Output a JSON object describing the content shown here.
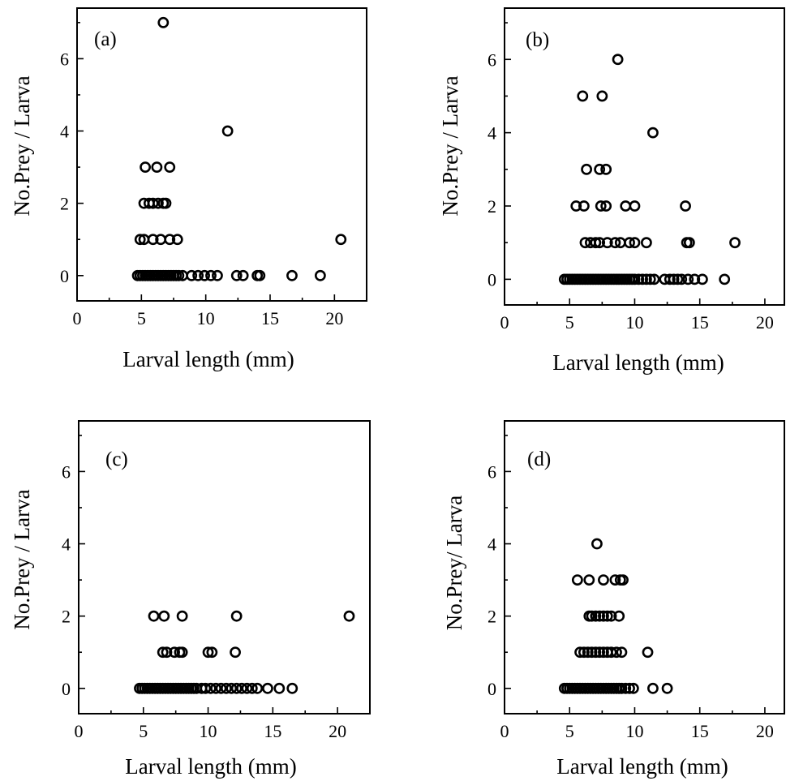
{
  "chart_data": [
    {
      "type": "scatter",
      "panel_label": "(a)",
      "xlabel": "Larval length (mm)",
      "ylabel": "No.Prey / Larva",
      "xlim": [
        0,
        22.5
      ],
      "ylim": [
        -0.7,
        7.4
      ],
      "xticks": [
        0,
        5,
        10,
        15,
        20
      ],
      "yticks": [
        0,
        2,
        4,
        6
      ],
      "x_minor": [
        2.5,
        7.5,
        12.5,
        17.5
      ],
      "y_minor": [
        1,
        3,
        5,
        7
      ],
      "points": [
        [
          6.7,
          7
        ],
        [
          11.7,
          4
        ],
        [
          5.3,
          3
        ],
        [
          6.2,
          3
        ],
        [
          7.2,
          3
        ],
        [
          5.2,
          2
        ],
        [
          5.6,
          2
        ],
        [
          5.9,
          2
        ],
        [
          6.3,
          2
        ],
        [
          6.7,
          2
        ],
        [
          6.9,
          2
        ],
        [
          4.9,
          1
        ],
        [
          5.2,
          1
        ],
        [
          5.9,
          1
        ],
        [
          6.5,
          1
        ],
        [
          7.2,
          1
        ],
        [
          7.8,
          1
        ],
        [
          20.5,
          1
        ],
        [
          4.7,
          0
        ],
        [
          4.9,
          0
        ],
        [
          5.1,
          0
        ],
        [
          5.3,
          0
        ],
        [
          5.5,
          0
        ],
        [
          5.7,
          0
        ],
        [
          5.9,
          0
        ],
        [
          6.1,
          0
        ],
        [
          6.3,
          0
        ],
        [
          6.5,
          0
        ],
        [
          6.7,
          0
        ],
        [
          6.9,
          0
        ],
        [
          7.1,
          0
        ],
        [
          7.3,
          0
        ],
        [
          7.5,
          0
        ],
        [
          7.7,
          0
        ],
        [
          7.9,
          0
        ],
        [
          8.2,
          0
        ],
        [
          8.9,
          0
        ],
        [
          9.4,
          0
        ],
        [
          9.9,
          0
        ],
        [
          10.4,
          0
        ],
        [
          10.9,
          0
        ],
        [
          12.4,
          0
        ],
        [
          12.9,
          0
        ],
        [
          14.0,
          0
        ],
        [
          14.2,
          0
        ],
        [
          16.7,
          0
        ],
        [
          18.9,
          0
        ]
      ]
    },
    {
      "type": "scatter",
      "panel_label": "(b)",
      "xlabel": "Larval length (mm)",
      "ylabel": "No.Prey / Larva",
      "xlim": [
        0,
        21.5
      ],
      "ylim": [
        -0.7,
        7.4
      ],
      "xticks": [
        0,
        5,
        10,
        15,
        20
      ],
      "yticks": [
        0,
        2,
        4,
        6
      ],
      "x_minor": [
        2.5,
        7.5,
        12.5,
        17.5
      ],
      "y_minor": [
        1,
        3,
        5,
        7
      ],
      "points": [
        [
          8.7,
          6
        ],
        [
          6.0,
          5
        ],
        [
          7.5,
          5
        ],
        [
          11.4,
          4
        ],
        [
          6.3,
          3
        ],
        [
          7.3,
          3
        ],
        [
          7.8,
          3
        ],
        [
          5.5,
          2
        ],
        [
          6.1,
          2
        ],
        [
          7.4,
          2
        ],
        [
          7.8,
          2
        ],
        [
          9.3,
          2
        ],
        [
          10.0,
          2
        ],
        [
          13.9,
          2
        ],
        [
          6.2,
          1
        ],
        [
          6.6,
          1
        ],
        [
          7.0,
          1
        ],
        [
          7.3,
          1
        ],
        [
          7.9,
          1
        ],
        [
          8.5,
          1
        ],
        [
          8.9,
          1
        ],
        [
          9.6,
          1
        ],
        [
          10.0,
          1
        ],
        [
          10.9,
          1
        ],
        [
          14.0,
          1
        ],
        [
          14.2,
          1
        ],
        [
          17.7,
          1
        ],
        [
          4.6,
          0
        ],
        [
          4.8,
          0
        ],
        [
          5.0,
          0
        ],
        [
          5.2,
          0
        ],
        [
          5.4,
          0
        ],
        [
          5.6,
          0
        ],
        [
          5.8,
          0
        ],
        [
          6.0,
          0
        ],
        [
          6.2,
          0
        ],
        [
          6.4,
          0
        ],
        [
          6.6,
          0
        ],
        [
          6.8,
          0
        ],
        [
          7.0,
          0
        ],
        [
          7.2,
          0
        ],
        [
          7.4,
          0
        ],
        [
          7.6,
          0
        ],
        [
          7.8,
          0
        ],
        [
          8.0,
          0
        ],
        [
          8.2,
          0
        ],
        [
          8.4,
          0
        ],
        [
          8.6,
          0
        ],
        [
          8.8,
          0
        ],
        [
          9.0,
          0
        ],
        [
          9.2,
          0
        ],
        [
          9.4,
          0
        ],
        [
          9.6,
          0
        ],
        [
          9.8,
          0
        ],
        [
          10.0,
          0
        ],
        [
          10.3,
          0
        ],
        [
          10.6,
          0
        ],
        [
          10.9,
          0
        ],
        [
          11.2,
          0
        ],
        [
          11.5,
          0
        ],
        [
          12.3,
          0
        ],
        [
          12.7,
          0
        ],
        [
          13.0,
          0
        ],
        [
          13.3,
          0
        ],
        [
          13.6,
          0
        ],
        [
          14.1,
          0
        ],
        [
          14.6,
          0
        ],
        [
          15.2,
          0
        ],
        [
          16.9,
          0
        ]
      ]
    },
    {
      "type": "scatter",
      "panel_label": "(c)",
      "xlabel": "Larval length (mm)",
      "ylabel": "No.Prey / Larva",
      "xlim": [
        0,
        22.5
      ],
      "ylim": [
        -0.7,
        7.4
      ],
      "xticks": [
        0,
        5,
        10,
        15,
        20
      ],
      "yticks": [
        0,
        2,
        4,
        6
      ],
      "x_minor": [
        2.5,
        7.5,
        12.5,
        17.5
      ],
      "y_minor": [
        1,
        3,
        5,
        7
      ],
      "points": [
        [
          5.8,
          2
        ],
        [
          6.6,
          2
        ],
        [
          8.0,
          2
        ],
        [
          12.2,
          2
        ],
        [
          20.9,
          2
        ],
        [
          6.5,
          1
        ],
        [
          6.8,
          1
        ],
        [
          7.4,
          1
        ],
        [
          7.8,
          1
        ],
        [
          8.0,
          1
        ],
        [
          10.0,
          1
        ],
        [
          10.3,
          1
        ],
        [
          12.1,
          1
        ],
        [
          4.7,
          0
        ],
        [
          4.9,
          0
        ],
        [
          5.1,
          0
        ],
        [
          5.3,
          0
        ],
        [
          5.5,
          0
        ],
        [
          5.7,
          0
        ],
        [
          5.9,
          0
        ],
        [
          6.1,
          0
        ],
        [
          6.3,
          0
        ],
        [
          6.5,
          0
        ],
        [
          6.7,
          0
        ],
        [
          6.9,
          0
        ],
        [
          7.1,
          0
        ],
        [
          7.3,
          0
        ],
        [
          7.5,
          0
        ],
        [
          7.7,
          0
        ],
        [
          7.9,
          0
        ],
        [
          8.1,
          0
        ],
        [
          8.3,
          0
        ],
        [
          8.5,
          0
        ],
        [
          8.7,
          0
        ],
        [
          8.9,
          0
        ],
        [
          9.1,
          0
        ],
        [
          9.5,
          0
        ],
        [
          9.8,
          0
        ],
        [
          10.2,
          0
        ],
        [
          10.6,
          0
        ],
        [
          11.0,
          0
        ],
        [
          11.4,
          0
        ],
        [
          11.8,
          0
        ],
        [
          12.2,
          0
        ],
        [
          12.6,
          0
        ],
        [
          13.0,
          0
        ],
        [
          13.4,
          0
        ],
        [
          13.8,
          0
        ],
        [
          14.6,
          0
        ],
        [
          15.5,
          0
        ],
        [
          16.5,
          0
        ]
      ]
    },
    {
      "type": "scatter",
      "panel_label": "(d)",
      "xlabel": "Larval length (mm)",
      "ylabel": "No.Prey/ Larva",
      "xlim": [
        0,
        21.5
      ],
      "ylim": [
        -0.7,
        7.4
      ],
      "xticks": [
        0,
        5,
        10,
        15,
        20
      ],
      "yticks": [
        0,
        2,
        4,
        6
      ],
      "x_minor": [
        2.5,
        7.5,
        12.5,
        17.5
      ],
      "y_minor": [
        1,
        3,
        5,
        7
      ],
      "points": [
        [
          7.1,
          4
        ],
        [
          5.6,
          3
        ],
        [
          6.5,
          3
        ],
        [
          7.6,
          3
        ],
        [
          8.5,
          3
        ],
        [
          8.9,
          3
        ],
        [
          9.1,
          3
        ],
        [
          6.5,
          2
        ],
        [
          6.7,
          2
        ],
        [
          7.0,
          2
        ],
        [
          7.3,
          2
        ],
        [
          7.6,
          2
        ],
        [
          7.9,
          2
        ],
        [
          8.2,
          2
        ],
        [
          8.8,
          2
        ],
        [
          5.8,
          1
        ],
        [
          6.1,
          1
        ],
        [
          6.4,
          1
        ],
        [
          6.7,
          1
        ],
        [
          7.0,
          1
        ],
        [
          7.3,
          1
        ],
        [
          7.6,
          1
        ],
        [
          7.9,
          1
        ],
        [
          8.2,
          1
        ],
        [
          8.6,
          1
        ],
        [
          9.0,
          1
        ],
        [
          11.0,
          1
        ],
        [
          4.6,
          0
        ],
        [
          4.8,
          0
        ],
        [
          5.0,
          0
        ],
        [
          5.2,
          0
        ],
        [
          5.4,
          0
        ],
        [
          5.6,
          0
        ],
        [
          5.8,
          0
        ],
        [
          6.0,
          0
        ],
        [
          6.2,
          0
        ],
        [
          6.4,
          0
        ],
        [
          6.6,
          0
        ],
        [
          6.8,
          0
        ],
        [
          7.0,
          0
        ],
        [
          7.2,
          0
        ],
        [
          7.4,
          0
        ],
        [
          7.6,
          0
        ],
        [
          7.8,
          0
        ],
        [
          8.0,
          0
        ],
        [
          8.2,
          0
        ],
        [
          8.4,
          0
        ],
        [
          8.6,
          0
        ],
        [
          8.8,
          0
        ],
        [
          9.0,
          0
        ],
        [
          9.3,
          0
        ],
        [
          9.6,
          0
        ],
        [
          9.9,
          0
        ],
        [
          11.4,
          0
        ],
        [
          12.5,
          0
        ]
      ]
    }
  ]
}
